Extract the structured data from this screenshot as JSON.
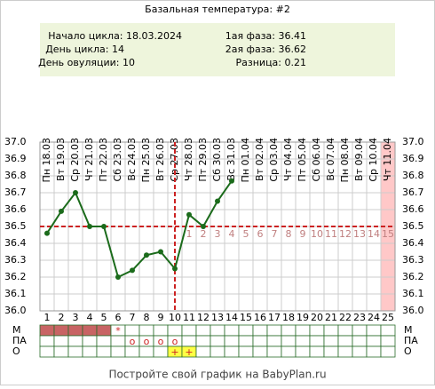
{
  "chart_data": {
    "type": "line",
    "title": "Базальная температура: #2",
    "info_left": [
      "Начало цикла: 18.03.2024",
      "День цикла: 14",
      "День овуляции: 10"
    ],
    "info_right": [
      "1ая фаза: 36.41",
      "2ая фаза: 36.62",
      "Разница: 0.21"
    ],
    "days": [
      1,
      2,
      3,
      4,
      5,
      6,
      7,
      8,
      9,
      10,
      11,
      12,
      13,
      14,
      15,
      16,
      17,
      18,
      19,
      20,
      21,
      22,
      23,
      24,
      25
    ],
    "dates": [
      "Пн 18.03",
      "Вт 19.03",
      "Ср 20.03",
      "Чт 21.03",
      "Пт 22.03",
      "Сб 23.03",
      "Вс 24.03",
      "Пн 25.03",
      "Вт 26.03",
      "Ср 27.03",
      "Чт 28.03",
      "Пт 29.03",
      "Сб 30.03",
      "Вс 31.03",
      "Пн 01.04",
      "Вт 02.04",
      "Ср 03.04",
      "Чт 04.04",
      "Пт 05.04",
      "Сб 06.04",
      "Вс 07.04",
      "Пн 08.04",
      "Вт 09.04",
      "Ср 10.04",
      "Чт 11.04"
    ],
    "series": [
      {
        "color": "#1b6b1b",
        "values": [
          36.46,
          36.59,
          36.7,
          36.5,
          36.5,
          36.2,
          36.24,
          36.33,
          36.35,
          36.25,
          36.57,
          36.5,
          36.65,
          36.77,
          null,
          null,
          null,
          null,
          null,
          null,
          null,
          null,
          null,
          null,
          null
        ]
      }
    ],
    "phase2_labels": [
      null,
      null,
      null,
      null,
      null,
      null,
      null,
      null,
      null,
      null,
      1,
      2,
      3,
      4,
      5,
      6,
      7,
      8,
      9,
      10,
      11,
      12,
      13,
      14,
      15
    ],
    "coverline": 36.5,
    "ovulation_day": 10,
    "marker_color": "#cc2222",
    "ylim": [
      36.0,
      37.0
    ],
    "yticks": [
      {
        "value": 36.0,
        "label": "36.0"
      },
      36.1,
      36.2,
      36.3,
      36.4,
      36.5,
      36.6,
      36.7,
      36.8,
      36.9,
      {
        "value": 37.0,
        "label": "37.0"
      }
    ],
    "grid": true,
    "rows": [
      {
        "label": "М",
        "fill": "#c86464",
        "filled": [
          true,
          true,
          true,
          true,
          true,
          false,
          false,
          false,
          false,
          false,
          false,
          false,
          false,
          false,
          false,
          false,
          false,
          false,
          false,
          false,
          false,
          false,
          false,
          false,
          false
        ],
        "marks": [
          null,
          null,
          null,
          null,
          null,
          "*",
          null,
          null,
          null,
          null,
          null,
          null,
          null,
          null,
          null,
          null,
          null,
          null,
          null,
          null,
          null,
          null,
          null,
          null,
          null
        ]
      },
      {
        "label": "ПА",
        "marks": [
          null,
          null,
          null,
          null,
          null,
          null,
          "o",
          "o",
          "o",
          "o",
          null,
          null,
          null,
          null,
          null,
          null,
          null,
          null,
          null,
          null,
          null,
          null,
          null,
          null,
          null
        ]
      },
      {
        "label": "О",
        "fill": "#ffff44",
        "filled": [
          false,
          false,
          false,
          false,
          false,
          false,
          false,
          false,
          false,
          true,
          true,
          false,
          false,
          false,
          false,
          false,
          false,
          false,
          false,
          false,
          false,
          false,
          false,
          false,
          false
        ],
        "marks": [
          null,
          null,
          null,
          null,
          null,
          null,
          null,
          null,
          null,
          "+",
          "+",
          null,
          null,
          null,
          null,
          null,
          null,
          null,
          null,
          null,
          null,
          null,
          null,
          null,
          null
        ]
      }
    ],
    "footer": "Постройте свой график на BabyPlan.ru"
  }
}
